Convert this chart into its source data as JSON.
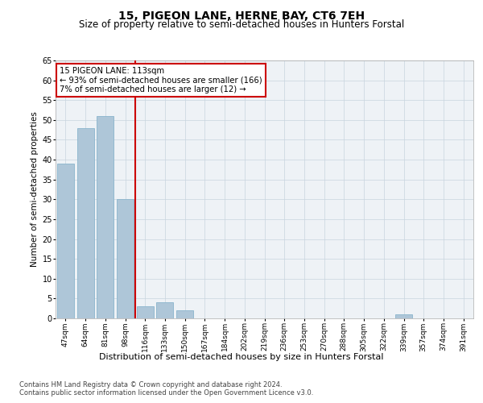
{
  "title": "15, PIGEON LANE, HERNE BAY, CT6 7EH",
  "subtitle": "Size of property relative to semi-detached houses in Hunters Forstal",
  "xlabel": "Distribution of semi-detached houses by size in Hunters Forstal",
  "ylabel": "Number of semi-detached properties",
  "categories": [
    "47sqm",
    "64sqm",
    "81sqm",
    "98sqm",
    "116sqm",
    "133sqm",
    "150sqm",
    "167sqm",
    "184sqm",
    "202sqm",
    "219sqm",
    "236sqm",
    "253sqm",
    "270sqm",
    "288sqm",
    "305sqm",
    "322sqm",
    "339sqm",
    "357sqm",
    "374sqm",
    "391sqm"
  ],
  "values": [
    39,
    48,
    51,
    30,
    3,
    4,
    2,
    0,
    0,
    0,
    0,
    0,
    0,
    0,
    0,
    0,
    0,
    1,
    0,
    0,
    0
  ],
  "bar_color": "#aec6d8",
  "bar_edge_color": "#8ab4cc",
  "vline_x_index": 4,
  "vline_color": "#cc0000",
  "annotation_title": "15 PIGEON LANE: 113sqm",
  "annotation_line1": "← 93% of semi-detached houses are smaller (166)",
  "annotation_line2": "7% of semi-detached houses are larger (12) →",
  "annotation_box_color": "#ffffff",
  "annotation_box_edge": "#cc0000",
  "ylim": [
    0,
    65
  ],
  "yticks": [
    0,
    5,
    10,
    15,
    20,
    25,
    30,
    35,
    40,
    45,
    50,
    55,
    60,
    65
  ],
  "footer_line1": "Contains HM Land Registry data © Crown copyright and database right 2024.",
  "footer_line2": "Contains public sector information licensed under the Open Government Licence v3.0.",
  "bg_color": "#eef2f6",
  "title_fontsize": 10,
  "subtitle_fontsize": 8.5,
  "tick_fontsize": 6.5,
  "ylabel_fontsize": 7.5
}
